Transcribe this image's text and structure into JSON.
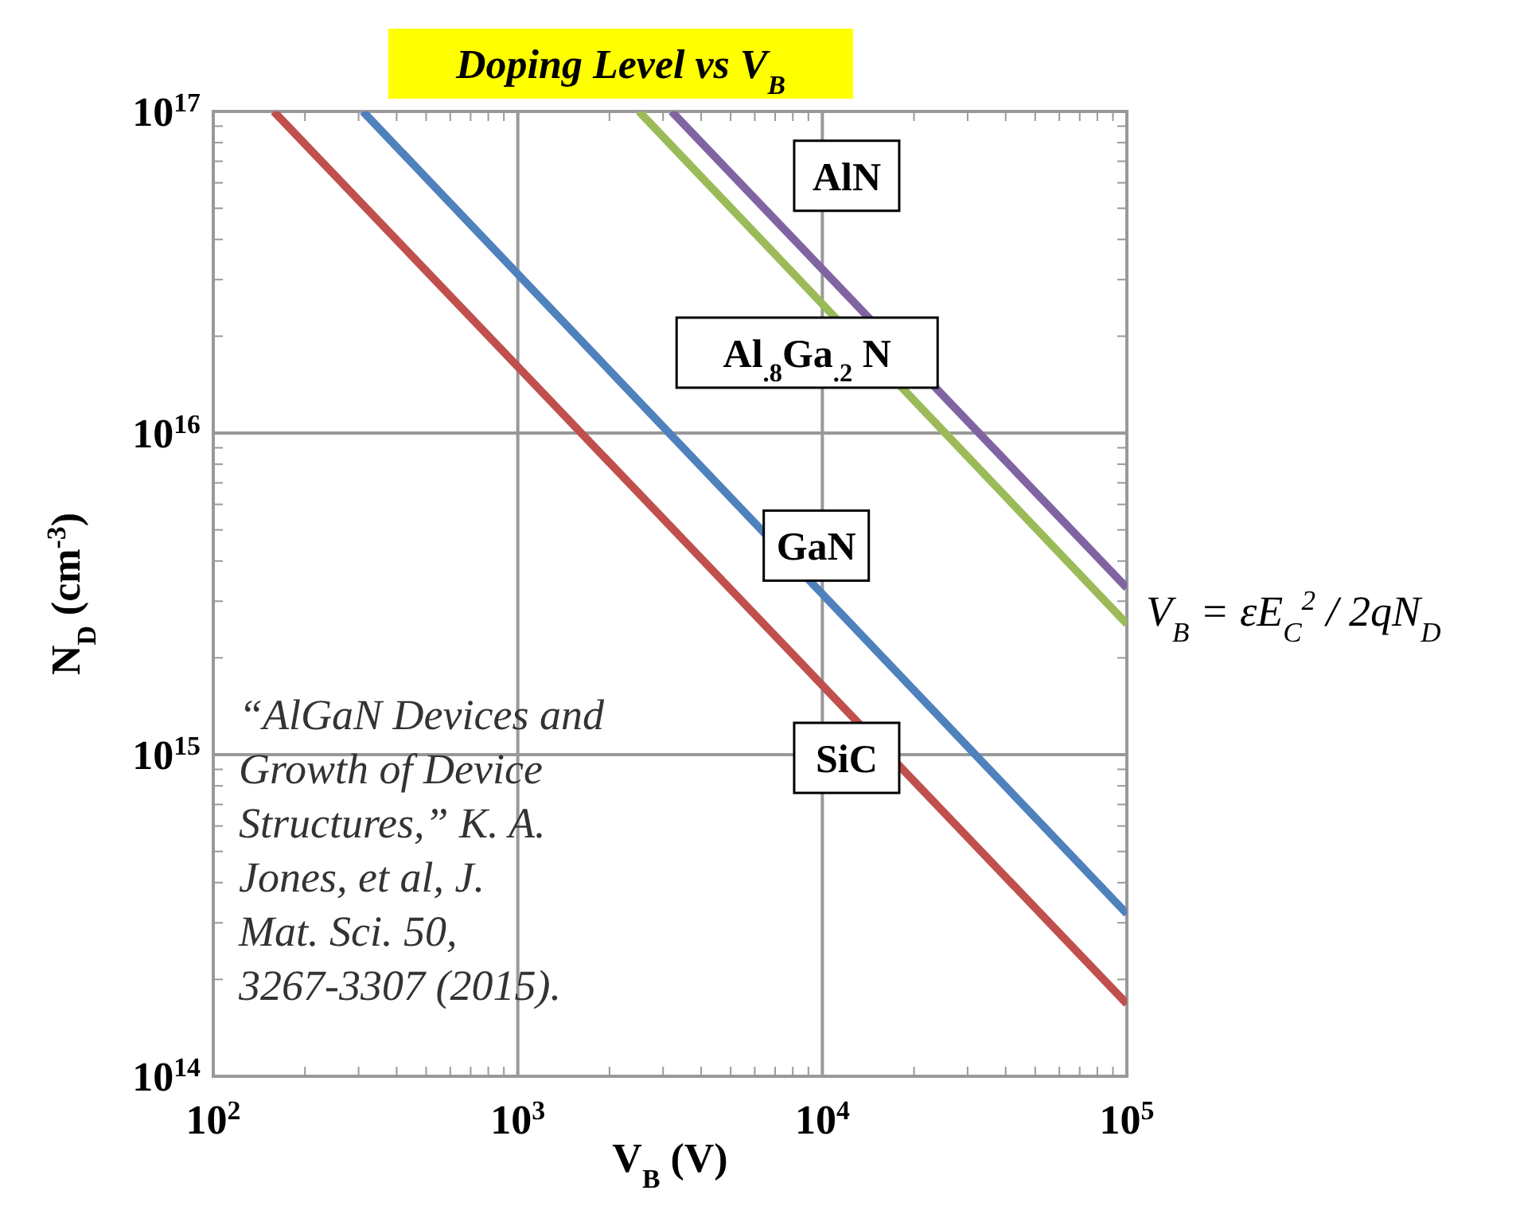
{
  "chart_data": {
    "type": "line",
    "title": "Doping Level vs V$_{B}$",
    "xlabel": "V$_{B}$ (V)",
    "ylabel": "N$_{D}$ (cm$^{-3}$)",
    "log": "xy",
    "grid": true,
    "line_style": "solid",
    "xlim": [
      100,
      100000
    ],
    "ylim": [
      100000000000000.0,
      1e+17
    ],
    "xticks": [
      {
        "value": 100,
        "label": "10$^{2}$"
      },
      {
        "value": 1000,
        "label": "10$^{3}$"
      },
      {
        "value": 10000,
        "label": "10$^{4}$"
      },
      {
        "value": 100000,
        "label": "10$^{5}$"
      }
    ],
    "yticks": [
      {
        "value": 100000000000000.0,
        "label": "10$^{14}$"
      },
      {
        "value": 1000000000000000.0,
        "label": "10$^{15}$"
      },
      {
        "value": 1e+16,
        "label": "10$^{16}$"
      },
      {
        "value": 1e+17,
        "label": "10$^{17}$"
      }
    ],
    "series": [
      {
        "name": "AlN",
        "color": "#8064a2",
        "x": [
          3200,
          100000
        ],
        "values": [
          1e+17,
          3300000000000000.0
        ]
      },
      {
        "name": "Al$_{.8}$Ga$_{.2}$ N",
        "color": "#9bbb59",
        "x": [
          2500,
          100000
        ],
        "values": [
          1e+17,
          2550000000000000.0
        ]
      },
      {
        "name": "GaN",
        "color": "#4f81bd",
        "x": [
          310,
          100000
        ],
        "values": [
          1e+17,
          320000000000000.0
        ]
      },
      {
        "name": "SiC",
        "color": "#c0504d",
        "x": [
          158,
          100000
        ],
        "values": [
          1e+17,
          168000000000000.0
        ]
      }
    ],
    "annotations": [
      "“AlGaN Devices and Growth of Device Structures,” K. A. Jones, et al, J. Mat. Sci. 50, 3267-3307 (2015).",
      "V$_{B}$ = εE$_{C}$$^{2}$ / 2qN$_{D}$"
    ]
  }
}
